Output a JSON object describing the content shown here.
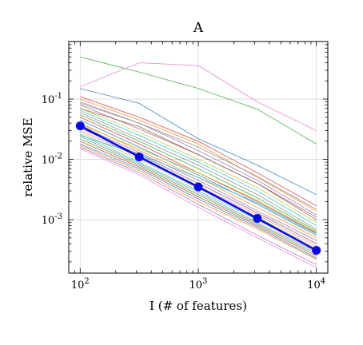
{
  "chart_data": {
    "type": "line",
    "title": "A",
    "xlabel": "I  (# of features)",
    "ylabel": "relative MSE",
    "x": [
      100,
      316,
      1000,
      3162,
      10000
    ],
    "xscale": "log",
    "yscale": "log",
    "xlim": [
      80,
      12500
    ],
    "ylim": [
      0.00013,
      0.9
    ],
    "grid": true,
    "xticks": [
      {
        "value": 100,
        "base": "10",
        "exp": "2"
      },
      {
        "value": 1000,
        "base": "10",
        "exp": "3"
      },
      {
        "value": 10000,
        "base": "10",
        "exp": "4"
      }
    ],
    "yticks": [
      {
        "value": 0.1,
        "base": "10",
        "exp": "-1"
      },
      {
        "value": 0.01,
        "base": "10",
        "exp": "-2"
      },
      {
        "value": 0.001,
        "base": "10",
        "exp": "-3"
      }
    ],
    "series": [
      {
        "color": "#2ca02c",
        "values": [
          0.5,
          0.28,
          0.15,
          0.068,
          0.018
        ]
      },
      {
        "color": "#e377c2",
        "values": [
          0.16,
          0.4,
          0.36,
          0.09,
          0.03
        ]
      },
      {
        "color": "#1f77b4",
        "values": [
          0.15,
          0.085,
          0.022,
          0.008,
          0.0026
        ]
      },
      {
        "color": "#d62728",
        "values": [
          0.11,
          0.05,
          0.02,
          0.006,
          0.0017
        ]
      },
      {
        "color": "#ff7f0e",
        "values": [
          0.1,
          0.045,
          0.018,
          0.005,
          0.0014
        ]
      },
      {
        "color": "#9467bd",
        "values": [
          0.09,
          0.04,
          0.014,
          0.0045,
          0.0012
        ]
      },
      {
        "color": "#8c564b",
        "values": [
          0.08,
          0.032,
          0.012,
          0.004,
          0.001
        ]
      },
      {
        "color": "#bcbd22",
        "values": [
          0.07,
          0.028,
          0.01,
          0.0034,
          0.0009
        ]
      },
      {
        "color": "#17becf",
        "values": [
          0.065,
          0.025,
          0.009,
          0.003,
          0.0008
        ]
      },
      {
        "color": "#7f7f7f",
        "values": [
          0.06,
          0.022,
          0.008,
          0.0026,
          0.0007
        ]
      },
      {
        "color": "#2ca02c",
        "values": [
          0.055,
          0.02,
          0.007,
          0.0023,
          0.00065
        ]
      },
      {
        "color": "#d62728",
        "values": [
          0.05,
          0.018,
          0.006,
          0.002,
          0.0006
        ]
      },
      {
        "color": "#1f77b4",
        "values": [
          0.045,
          0.016,
          0.0055,
          0.0018,
          0.00055
        ]
      },
      {
        "color": "#ff7f0e",
        "values": [
          0.04,
          0.014,
          0.005,
          0.0016,
          0.0005
        ]
      },
      {
        "color": "#9467bd",
        "values": [
          0.036,
          0.013,
          0.0045,
          0.0014,
          0.00045
        ]
      },
      {
        "color": "#8c564b",
        "values": [
          0.033,
          0.012,
          0.004,
          0.0013,
          0.0004
        ]
      },
      {
        "color": "#e377c2",
        "values": [
          0.03,
          0.011,
          0.0036,
          0.0012,
          0.00037
        ]
      },
      {
        "color": "#bcbd22",
        "values": [
          0.028,
          0.01,
          0.0033,
          0.0011,
          0.00034
        ]
      },
      {
        "color": "#17becf",
        "values": [
          0.026,
          0.009,
          0.003,
          0.001,
          0.00031
        ]
      },
      {
        "color": "#7f7f7f",
        "values": [
          0.024,
          0.0085,
          0.0028,
          0.0009,
          0.00029
        ]
      },
      {
        "color": "#2ca02c",
        "values": [
          0.022,
          0.008,
          0.0026,
          0.00085,
          0.00027
        ]
      },
      {
        "color": "#d62728",
        "values": [
          0.02,
          0.0075,
          0.0024,
          0.0008,
          0.00025
        ]
      },
      {
        "color": "#1f77b4",
        "values": [
          0.018,
          0.007,
          0.0022,
          0.00075,
          0.00023
        ]
      },
      {
        "color": "#ff7f0e",
        "values": [
          0.017,
          0.0065,
          0.002,
          0.0007,
          0.00022
        ]
      },
      {
        "color": "#9467bd",
        "values": [
          0.016,
          0.006,
          0.0018,
          0.00055,
          0.00018
        ]
      },
      {
        "color": "#e377c2",
        "values": [
          0.015,
          0.0055,
          0.0016,
          0.0005,
          0.00016
        ]
      },
      {
        "color": "#17becf",
        "values": [
          0.025,
          0.012,
          0.005,
          0.0019,
          0.00058
        ]
      },
      {
        "color": "#bcbd22",
        "values": [
          0.038,
          0.015,
          0.006,
          0.0021,
          0.00062
        ]
      },
      {
        "color": "#8c564b",
        "values": [
          0.07,
          0.035,
          0.012,
          0.004,
          0.0011
        ]
      },
      {
        "color": "#7f7f7f",
        "values": [
          0.085,
          0.04,
          0.016,
          0.0052,
          0.0015
        ]
      }
    ],
    "mean": {
      "color": "#0a0ae6",
      "values": [
        0.036,
        0.011,
        0.0035,
        0.00105,
        0.00031
      ]
    }
  }
}
